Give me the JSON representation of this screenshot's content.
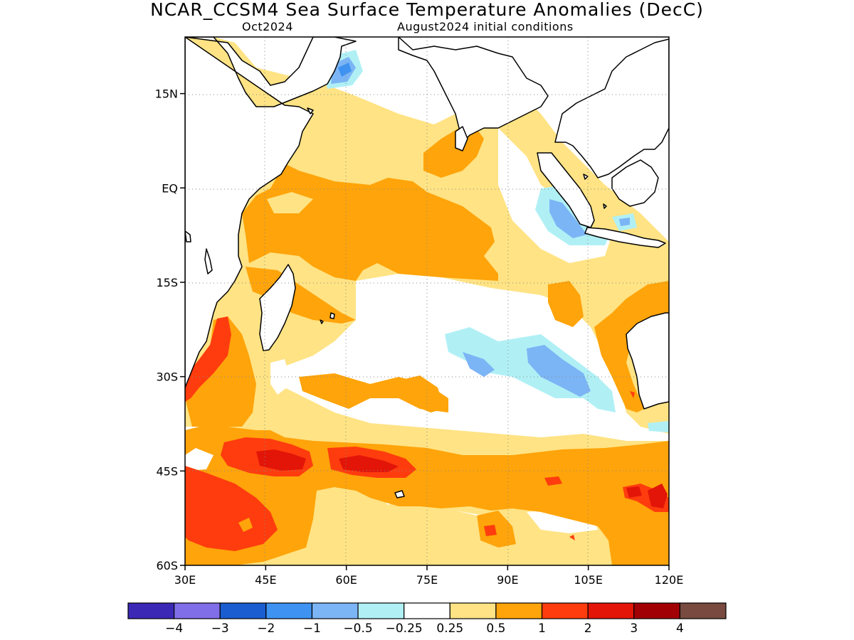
{
  "title": "NCAR_CCSM4 Sea Surface Temperature Anomalies (DecC)",
  "subtitle_left": "Oct2024",
  "subtitle_right": "August2024 initial conditions",
  "map": {
    "lon_range": [
      30,
      120
    ],
    "lat_range": [
      -60,
      24
    ],
    "lat_ticks": [
      {
        "value": 15,
        "label": "15N"
      },
      {
        "value": 0,
        "label": "EQ"
      },
      {
        "value": -15,
        "label": "15S"
      },
      {
        "value": -30,
        "label": "30S"
      },
      {
        "value": -45,
        "label": "45S"
      },
      {
        "value": -60,
        "label": "60S"
      }
    ],
    "lon_ticks": [
      {
        "value": 30,
        "label": "30E"
      },
      {
        "value": 45,
        "label": "45E"
      },
      {
        "value": 60,
        "label": "60E"
      },
      {
        "value": 75,
        "label": "75E"
      },
      {
        "value": 90,
        "label": "90E"
      },
      {
        "value": 105,
        "label": "105E"
      },
      {
        "value": 120,
        "label": "120E"
      }
    ],
    "grid": true,
    "color_scale": {
      "colors": [
        "#3b28b5",
        "#7f6ee8",
        "#1a5dd0",
        "#3e93f2",
        "#7cb5f5",
        "#b0f0f5",
        "#ffffff",
        "#ffe384",
        "#ffa40a",
        "#ff3c0e",
        "#e21508",
        "#a10005",
        "#784a40"
      ],
      "labels": [
        "-4",
        "-3",
        "-2",
        "-1",
        "-0.5",
        "-0.25",
        "0.25",
        "0.5",
        "1",
        "2",
        "3",
        "4"
      ]
    }
  }
}
